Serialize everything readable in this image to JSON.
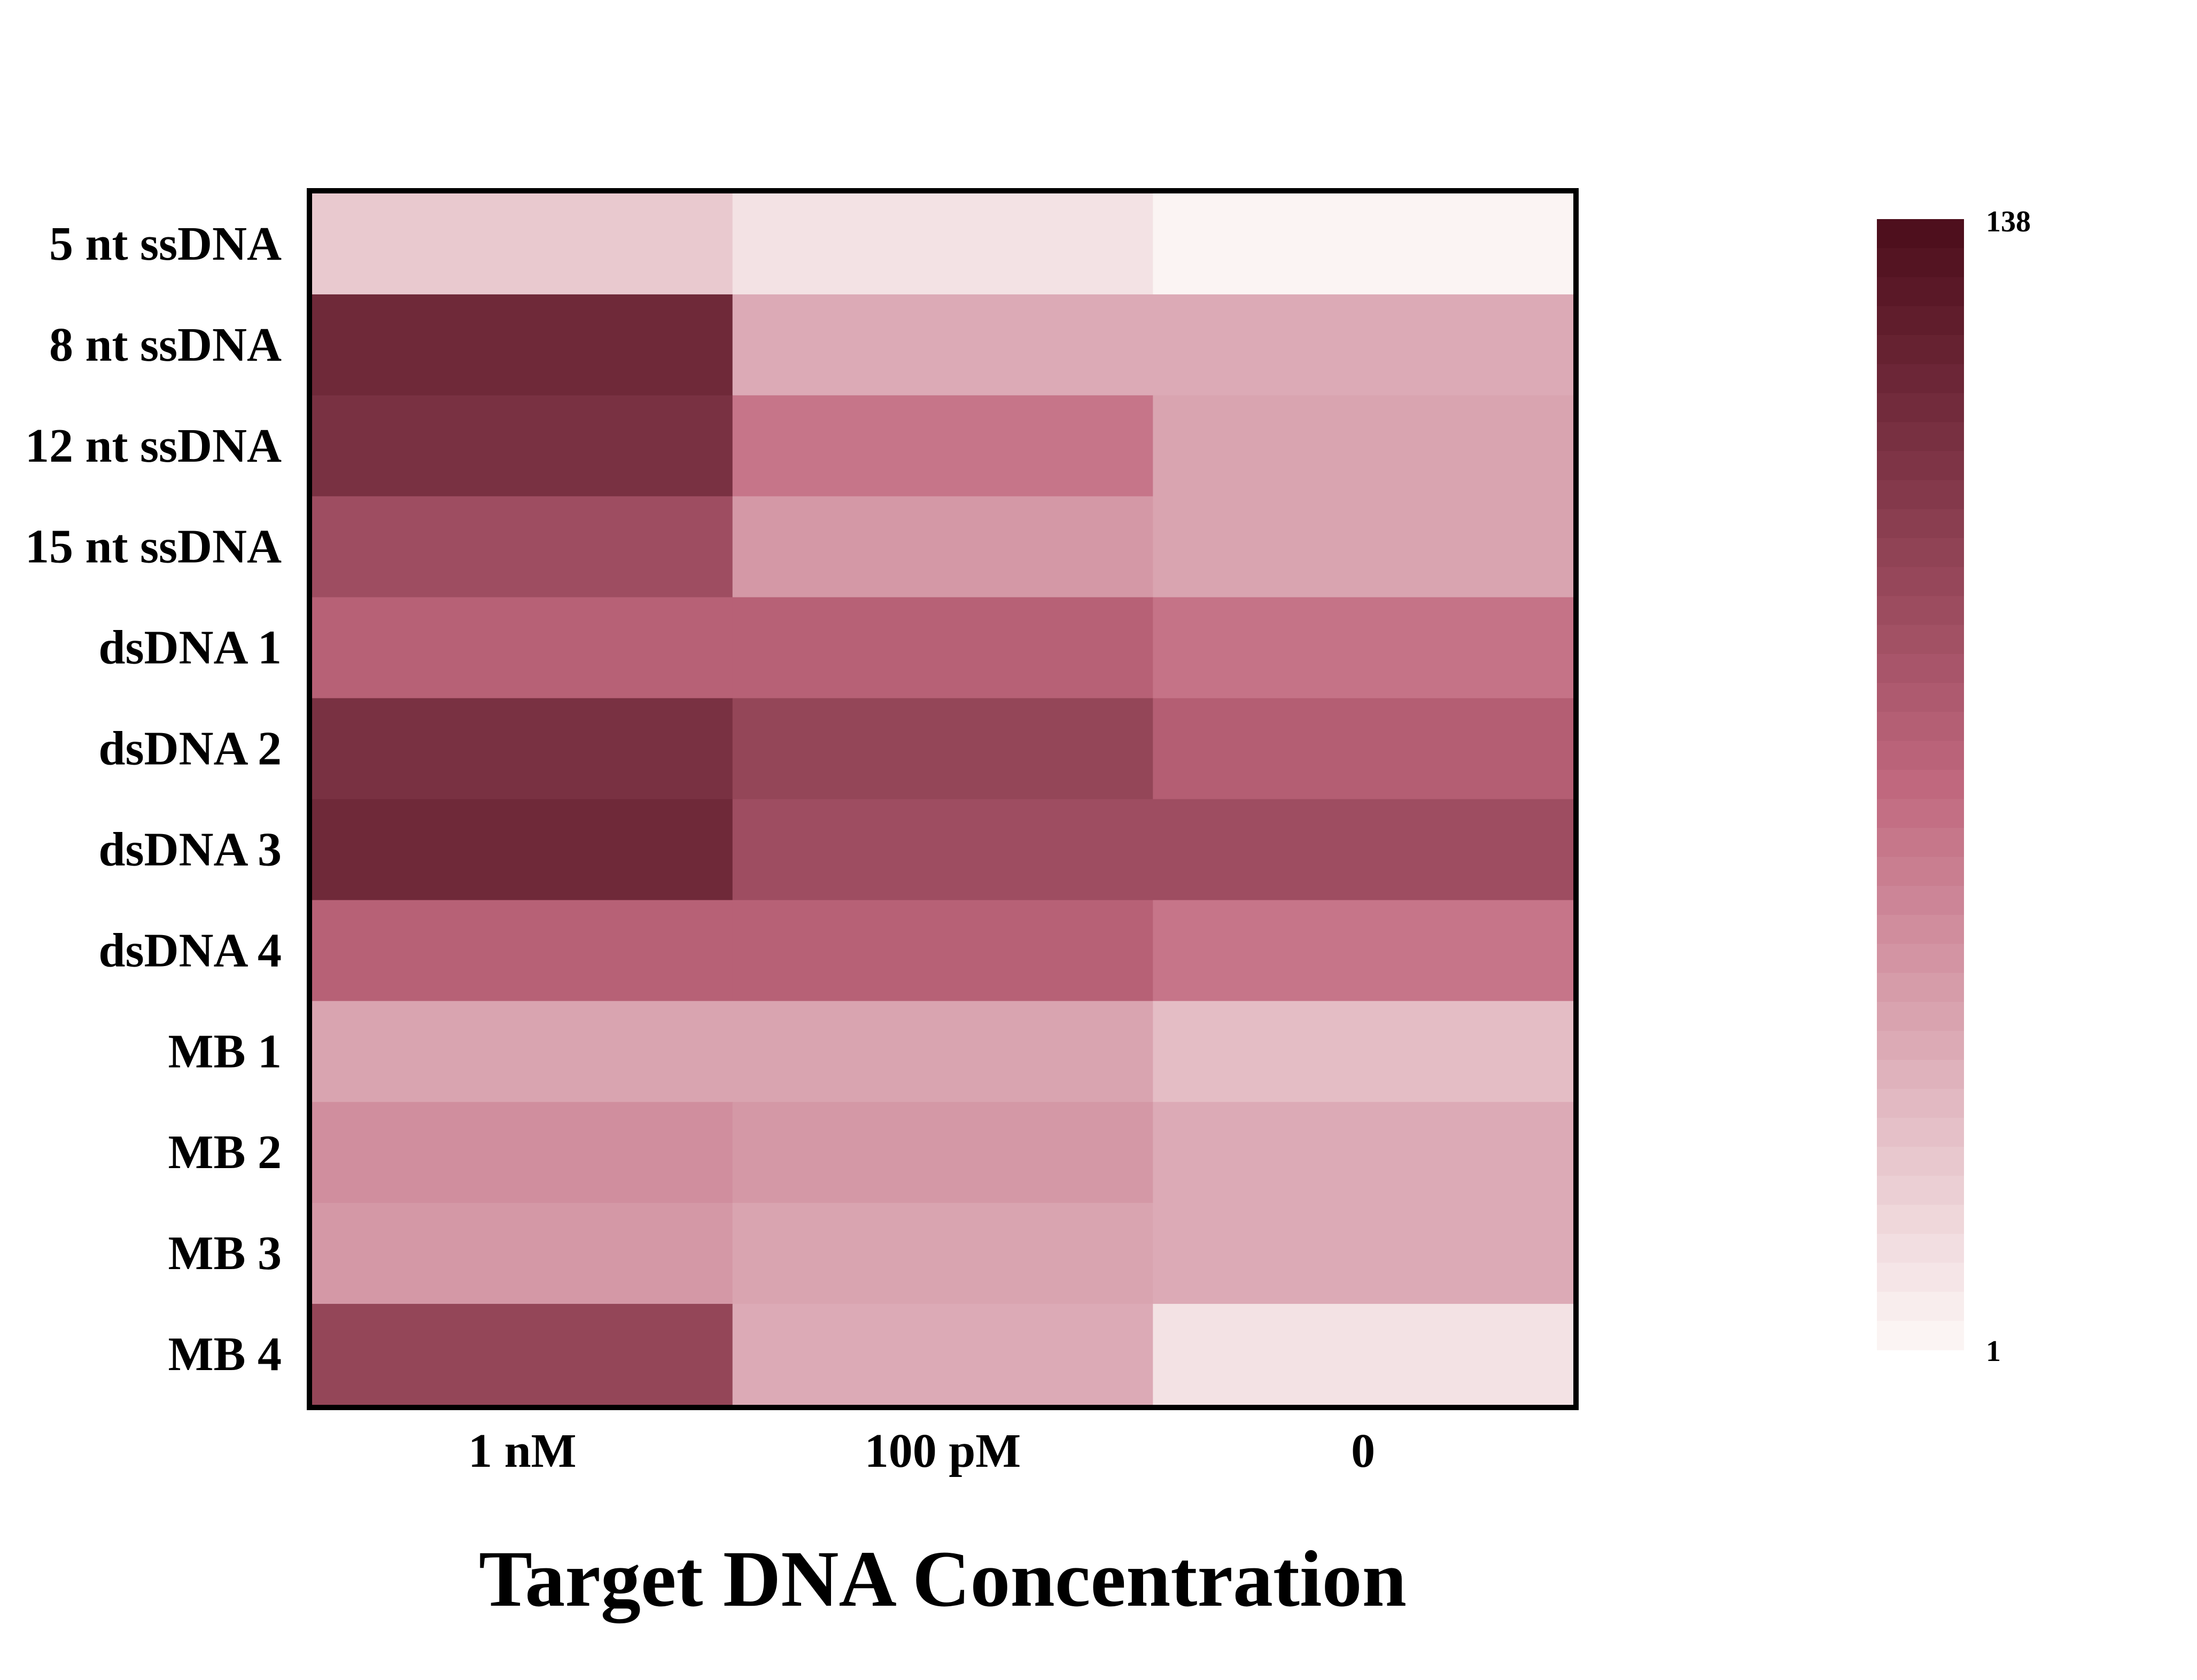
{
  "chart_data": {
    "type": "heatmap",
    "title": "",
    "xlabel": "Target DNA Concentration",
    "ylabel": "",
    "columns": [
      "1 nM",
      "100 pM",
      "0"
    ],
    "rows": [
      "5 nt ssDNA",
      "8 nt ssDNA",
      "12 nt ssDNA",
      "15 nt ssDNA",
      "dsDNA 1",
      "dsDNA 2",
      "dsDNA 3",
      "dsDNA 4",
      "MB 1",
      "MB 2",
      "MB 3",
      "MB 4"
    ],
    "values": [
      [
        22,
        10,
        1
      ],
      [
        118,
        37,
        37
      ],
      [
        112,
        63,
        40
      ],
      [
        90,
        46,
        40
      ],
      [
        75,
        75,
        64
      ],
      [
        112,
        96,
        77
      ],
      [
        118,
        90,
        90
      ],
      [
        75,
        75,
        63
      ],
      [
        40,
        40,
        28
      ],
      [
        51,
        46,
        37
      ],
      [
        46,
        40,
        37
      ],
      [
        96,
        37,
        10
      ]
    ],
    "colorbar": {
      "min": 1,
      "max": 138,
      "min_label": "1",
      "max_label": "138",
      "low_color": "#fbf4f3",
      "mid_color": "#c0687e",
      "high_color": "#4e0f1d"
    }
  }
}
